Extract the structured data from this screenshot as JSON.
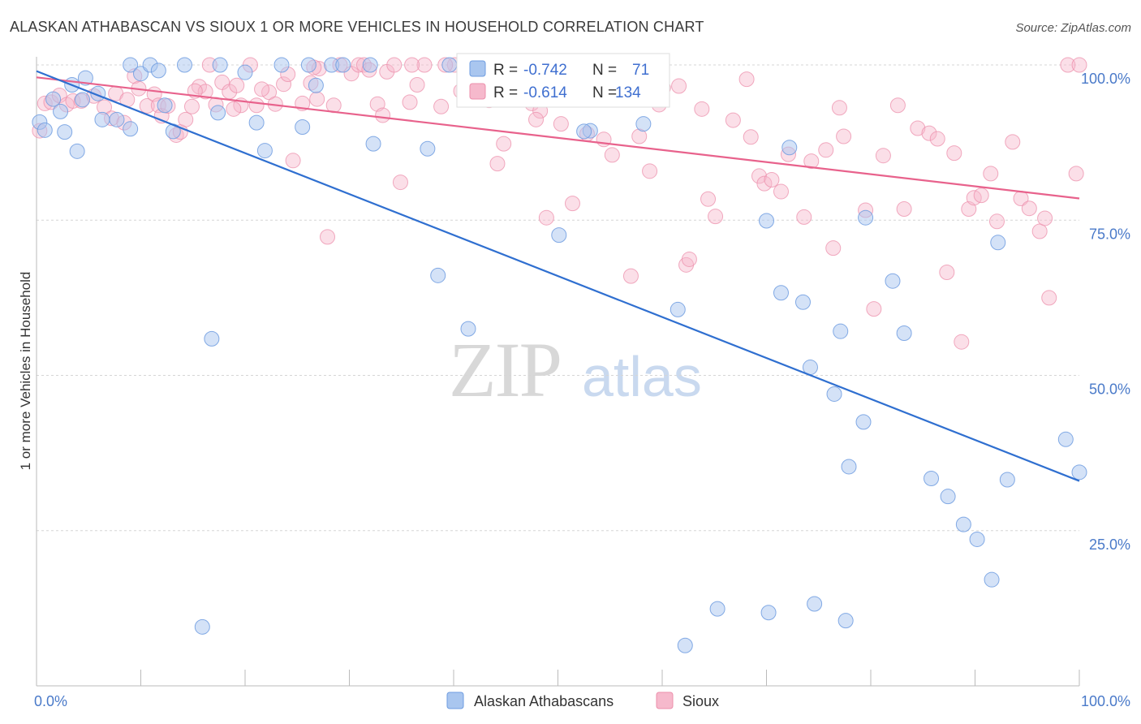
{
  "chart_data": {
    "type": "scatter",
    "title": "ALASKAN ATHABASCAN VS SIOUX 1 OR MORE VEHICLES IN HOUSEHOLD CORRELATION CHART",
    "source": "Source: ZipAtlas.com",
    "xlabel": "",
    "ylabel": "1 or more Vehicles in Household",
    "xlim": [
      0,
      100
    ],
    "ylim": [
      0,
      102
    ],
    "x_tick_labels": [
      "0.0%",
      "100.0%"
    ],
    "y_ticks": [
      {
        "value": 100,
        "label": "100.0%"
      },
      {
        "value": 75,
        "label": "75.0%"
      },
      {
        "value": 50,
        "label": "50.0%"
      },
      {
        "value": 25,
        "label": "25.0%"
      }
    ],
    "watermark": {
      "zip": "ZIP",
      "atlas": "atlas"
    },
    "colors": {
      "athabascan_fill": "#a9c6ef",
      "athabascan_stroke": "#6e9ce0",
      "athabascan_line": "#2f6fd0",
      "sioux_fill": "#f6b9cc",
      "sioux_stroke": "#ec8fab",
      "sioux_line": "#e8628c",
      "axis_text": "#4a7ac9",
      "grid": "#d6d6d6"
    },
    "stats": [
      {
        "r_label": "R =",
        "r": "-0.742",
        "n_label": "N =",
        "n": "71"
      },
      {
        "r_label": "R =",
        "r": "-0.614",
        "n_label": "N =",
        "n": "134"
      }
    ],
    "legend": [
      {
        "label": "Alaskan Athabascans"
      },
      {
        "label": "Sioux"
      }
    ],
    "series": [
      {
        "name": "Alaskan Athabascans",
        "trend": [
          [
            0,
            99
          ],
          [
            100,
            33
          ]
        ],
        "points": [
          [
            0.3,
            90.8
          ],
          [
            0.8,
            89.5
          ],
          [
            1.6,
            94.5
          ],
          [
            2.3,
            92.5
          ],
          [
            2.7,
            89.2
          ],
          [
            3.4,
            96.8
          ],
          [
            3.9,
            86.1
          ],
          [
            4.4,
            94.4
          ],
          [
            4.7,
            97.9
          ],
          [
            5.9,
            95.4
          ],
          [
            6.3,
            91.2
          ],
          [
            7.7,
            91.2
          ],
          [
            9.0,
            100
          ],
          [
            10.0,
            98.6
          ],
          [
            10.9,
            100
          ],
          [
            9.0,
            89.7
          ],
          [
            11.7,
            99.1
          ],
          [
            12.3,
            93.5
          ],
          [
            13.1,
            89.3
          ],
          [
            14.2,
            100
          ],
          [
            15.9,
            9.5
          ],
          [
            16.8,
            55.9
          ],
          [
            17.4,
            92.3
          ],
          [
            17.6,
            100
          ],
          [
            20.0,
            98.8
          ],
          [
            21.1,
            90.7
          ],
          [
            21.9,
            86.2
          ],
          [
            23.5,
            100
          ],
          [
            25.5,
            90.0
          ],
          [
            26.1,
            100
          ],
          [
            26.8,
            96.7
          ],
          [
            28.3,
            100
          ],
          [
            29.4,
            100
          ],
          [
            32.0,
            100
          ],
          [
            32.3,
            87.3
          ],
          [
            37.5,
            86.5
          ],
          [
            38.5,
            66.1
          ],
          [
            39.6,
            100
          ],
          [
            41.4,
            57.5
          ],
          [
            45.0,
            96.0
          ],
          [
            50.1,
            72.6
          ],
          [
            53.1,
            89.4
          ],
          [
            58.2,
            90.5
          ],
          [
            61.5,
            60.6
          ],
          [
            62.2,
            6.5
          ],
          [
            65.3,
            12.4
          ],
          [
            70.0,
            74.9
          ],
          [
            70.2,
            11.8
          ],
          [
            71.4,
            63.3
          ],
          [
            72.2,
            86.7
          ],
          [
            73.5,
            61.8
          ],
          [
            74.2,
            51.3
          ],
          [
            74.6,
            13.2
          ],
          [
            76.5,
            47.0
          ],
          [
            77.1,
            57.1
          ],
          [
            77.6,
            10.5
          ],
          [
            77.9,
            35.3
          ],
          [
            79.3,
            42.5
          ],
          [
            79.5,
            75.4
          ],
          [
            82.1,
            65.2
          ],
          [
            83.2,
            56.8
          ],
          [
            85.8,
            33.4
          ],
          [
            87.4,
            30.5
          ],
          [
            88.9,
            26.0
          ],
          [
            90.2,
            23.6
          ],
          [
            91.6,
            17.1
          ],
          [
            92.2,
            71.4
          ],
          [
            93.1,
            33.2
          ],
          [
            98.7,
            39.7
          ],
          [
            100.0,
            34.4
          ],
          [
            52.5,
            89.3
          ]
        ]
      },
      {
        "name": "Sioux",
        "trend": [
          [
            0,
            98
          ],
          [
            100,
            78.5
          ]
        ],
        "points": [
          [
            0.3,
            89.4
          ],
          [
            0.8,
            93.8
          ],
          [
            1.4,
            94.0
          ],
          [
            2.2,
            95.1
          ],
          [
            2.9,
            93.6
          ],
          [
            3.5,
            94.2
          ],
          [
            4.3,
            94.2
          ],
          [
            5.5,
            95.0
          ],
          [
            6.5,
            93.2
          ],
          [
            7.2,
            91.4
          ],
          [
            7.6,
            95.4
          ],
          [
            8.4,
            90.7
          ],
          [
            8.7,
            94.4
          ],
          [
            9.4,
            98.2
          ],
          [
            9.8,
            96.2
          ],
          [
            10.6,
            93.4
          ],
          [
            11.3,
            95.3
          ],
          [
            11.7,
            93.5
          ],
          [
            12.0,
            91.8
          ],
          [
            12.6,
            93.4
          ],
          [
            13.4,
            88.7
          ],
          [
            13.8,
            89.2
          ],
          [
            14.3,
            91.2
          ],
          [
            14.9,
            93.3
          ],
          [
            15.6,
            96.5
          ],
          [
            16.2,
            95.7
          ],
          [
            16.6,
            100
          ],
          [
            17.2,
            93.6
          ],
          [
            17.8,
            97.2
          ],
          [
            18.5,
            95.7
          ],
          [
            19.2,
            96.7
          ],
          [
            19.6,
            93.5
          ],
          [
            20.5,
            100
          ],
          [
            21.1,
            93.5
          ],
          [
            22.3,
            95.6
          ],
          [
            22.9,
            93.7
          ],
          [
            23.7,
            96.9
          ],
          [
            24.1,
            98.5
          ],
          [
            24.6,
            84.6
          ],
          [
            25.5,
            93.8
          ],
          [
            26.3,
            97.1
          ],
          [
            26.9,
            94.5
          ],
          [
            27.1,
            99.4
          ],
          [
            27.9,
            72.3
          ],
          [
            28.5,
            93.5
          ],
          [
            29.1,
            100
          ],
          [
            30.2,
            98.6
          ],
          [
            30.9,
            100
          ],
          [
            31.4,
            100
          ],
          [
            31.9,
            99.2
          ],
          [
            32.7,
            93.7
          ],
          [
            33.6,
            98.9
          ],
          [
            34.3,
            100
          ],
          [
            34.9,
            81.1
          ],
          [
            35.8,
            94.0
          ],
          [
            36.5,
            96.8
          ],
          [
            37.2,
            100
          ],
          [
            38.8,
            93.3
          ],
          [
            40.1,
            100
          ],
          [
            40.7,
            95.8
          ],
          [
            42.2,
            100
          ],
          [
            43.4,
            94.3
          ],
          [
            44.2,
            84.1
          ],
          [
            44.8,
            87.3
          ],
          [
            46.0,
            95.2
          ],
          [
            47.5,
            93.8
          ],
          [
            48.3,
            92.6
          ],
          [
            48.9,
            75.4
          ],
          [
            50.3,
            90.5
          ],
          [
            51.4,
            77.7
          ],
          [
            52.8,
            88.9
          ],
          [
            53.7,
            94.8
          ],
          [
            54.4,
            88.0
          ],
          [
            55.2,
            85.5
          ],
          [
            56.4,
            96.6
          ],
          [
            57.0,
            66.0
          ],
          [
            58.8,
            82.9
          ],
          [
            59.7,
            93.6
          ],
          [
            60.1,
            96.3
          ],
          [
            61.6,
            96.6
          ],
          [
            62.3,
            67.8
          ],
          [
            62.6,
            68.7
          ],
          [
            63.8,
            92.9
          ],
          [
            64.4,
            78.4
          ],
          [
            65.1,
            75.6
          ],
          [
            66.8,
            91.1
          ],
          [
            68.1,
            97.7
          ],
          [
            68.5,
            88.4
          ],
          [
            69.3,
            82.1
          ],
          [
            69.8,
            80.9
          ],
          [
            70.5,
            81.5
          ],
          [
            71.4,
            79.6
          ],
          [
            72.1,
            85.6
          ],
          [
            73.6,
            75.5
          ],
          [
            74.3,
            84.5
          ],
          [
            75.7,
            86.3
          ],
          [
            76.4,
            70.5
          ],
          [
            77.0,
            93.1
          ],
          [
            77.4,
            88.5
          ],
          [
            79.5,
            76.6
          ],
          [
            80.3,
            60.7
          ],
          [
            81.2,
            85.4
          ],
          [
            82.6,
            93.5
          ],
          [
            83.2,
            76.8
          ],
          [
            84.5,
            89.8
          ],
          [
            85.6,
            89.0
          ],
          [
            86.4,
            88.1
          ],
          [
            87.3,
            66.6
          ],
          [
            88.0,
            85.8
          ],
          [
            88.7,
            55.4
          ],
          [
            89.4,
            76.8
          ],
          [
            89.9,
            78.6
          ],
          [
            90.6,
            79.0
          ],
          [
            91.5,
            82.5
          ],
          [
            92.1,
            74.8
          ],
          [
            93.6,
            87.6
          ],
          [
            94.4,
            78.5
          ],
          [
            95.2,
            76.9
          ],
          [
            96.2,
            73.2
          ],
          [
            96.7,
            75.3
          ],
          [
            97.1,
            62.5
          ],
          [
            98.9,
            100
          ],
          [
            99.7,
            82.5
          ],
          [
            100.0,
            100
          ],
          [
            47.9,
            91.2
          ],
          [
            57.8,
            88.5
          ],
          [
            18.9,
            92.9
          ],
          [
            33.2,
            91.9
          ],
          [
            39.2,
            100
          ],
          [
            43.0,
            98.0
          ],
          [
            21.6,
            96.1
          ],
          [
            15.2,
            95.8
          ],
          [
            26.6,
            99.6
          ],
          [
            36.0,
            100
          ]
        ]
      }
    ]
  }
}
